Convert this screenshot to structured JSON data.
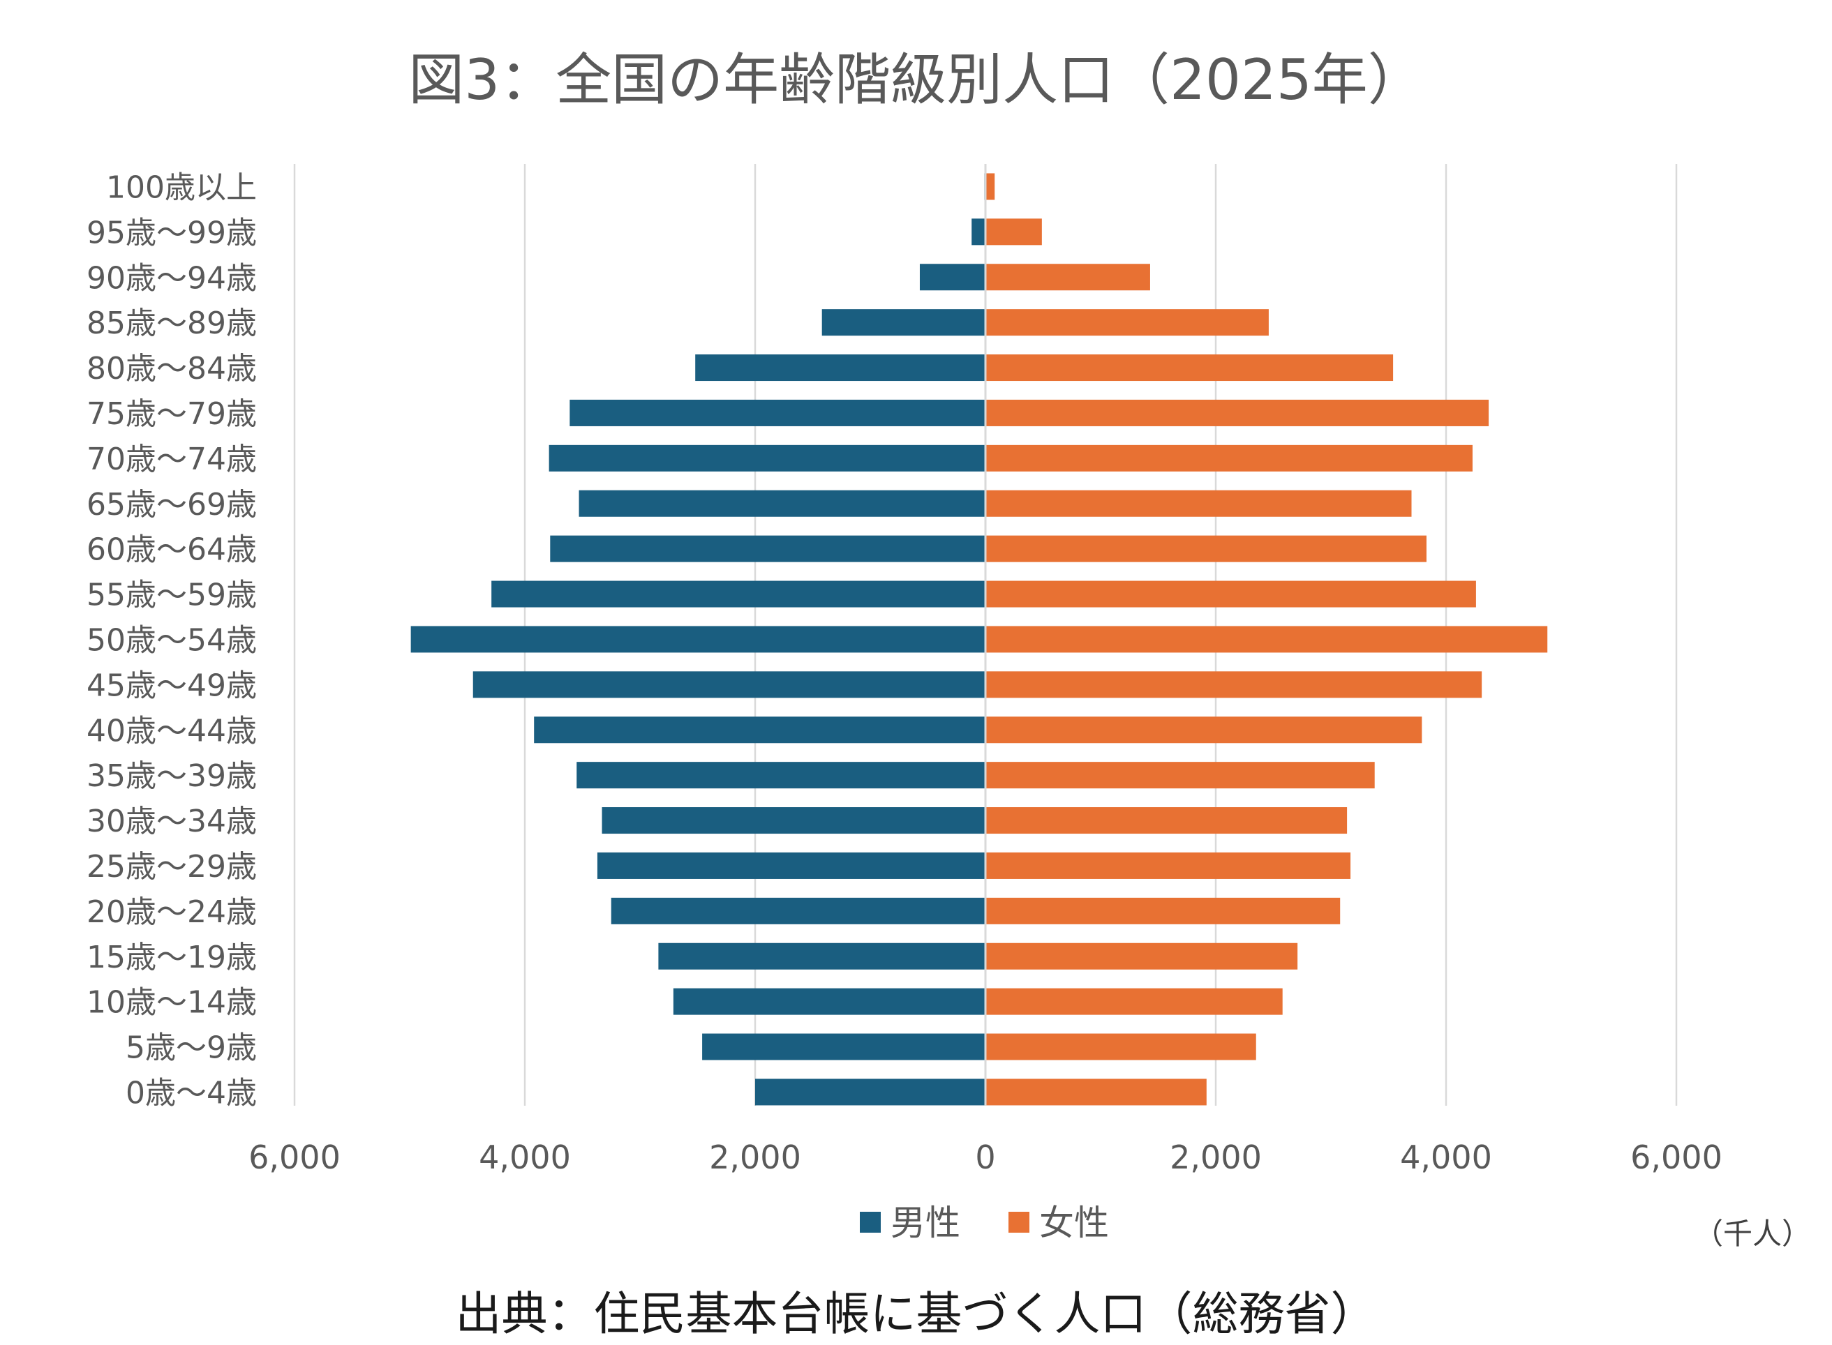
{
  "chart_data": {
    "type": "bar",
    "orientation": "horizontal-diverging",
    "title": "図3：全国の年齢階級別人口（2025年）",
    "unit_label": "（千人）",
    "source": "出典：住民基本台帳に基づく人口（総務省）",
    "categories": [
      "100歳以上",
      "95歳～99歳",
      "90歳～94歳",
      "85歳～89歳",
      "80歳～84歳",
      "75歳～79歳",
      "70歳～74歳",
      "65歳～69歳",
      "60歳～64歳",
      "55歳～59歳",
      "50歳～54歳",
      "45歳～49歳",
      "40歳～44歳",
      "35歳～39歳",
      "30歳～34歳",
      "25歳～29歳",
      "20歳～24歳",
      "15歳～19歳",
      "10歳～14歳",
      "5歳～9歳",
      "0歳～4歳"
    ],
    "series": [
      {
        "name": "男性",
        "color": "#1a5e80",
        "side": "left",
        "values": [
          10,
          120,
          570,
          1420,
          2520,
          3610,
          3790,
          3530,
          3780,
          4290,
          4990,
          4450,
          3920,
          3550,
          3330,
          3370,
          3250,
          2840,
          2710,
          2460,
          2000
        ]
      },
      {
        "name": "女性",
        "color": "#e87133",
        "side": "right",
        "values": [
          80,
          490,
          1430,
          2460,
          3540,
          4370,
          4230,
          3700,
          3830,
          4260,
          4880,
          4310,
          3790,
          3380,
          3140,
          3170,
          3080,
          2710,
          2580,
          2350,
          1920
        ]
      }
    ],
    "xlim": [
      -6000,
      6000
    ],
    "xticks": [
      -6000,
      -4000,
      -2000,
      0,
      2000,
      4000,
      6000
    ],
    "xtick_labels": [
      "6,000",
      "4,000",
      "2,000",
      "0",
      "2,000",
      "4,000",
      "6,000"
    ],
    "grid": true,
    "legend_position": "bottom-center"
  }
}
